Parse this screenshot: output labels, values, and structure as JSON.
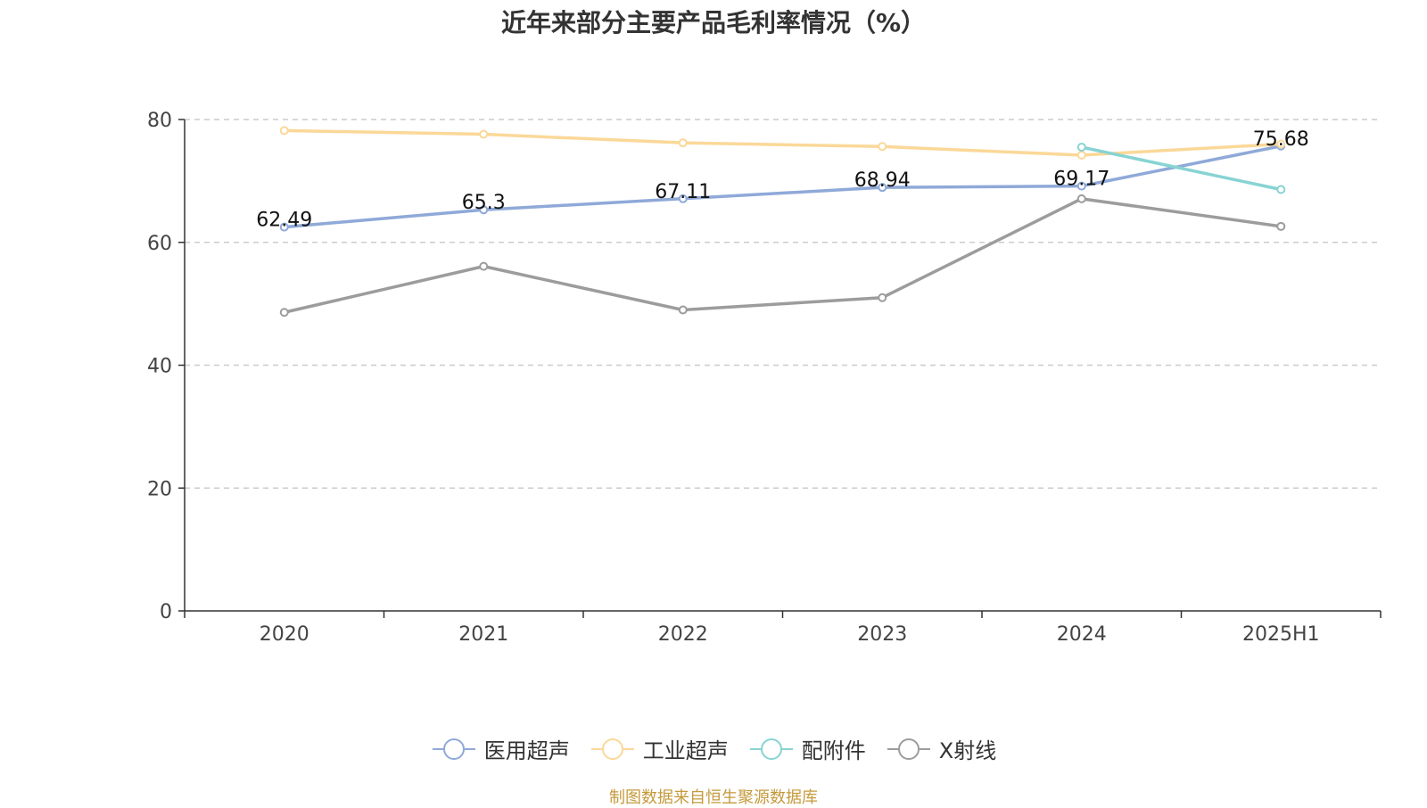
{
  "chart_data": {
    "type": "line",
    "title": "近年来部分主要产品毛利率情况（%）",
    "categories": [
      "2020",
      "2021",
      "2022",
      "2023",
      "2024",
      "2025H1"
    ],
    "ylim": [
      0,
      80
    ],
    "yticks": [
      0,
      20,
      40,
      60,
      80
    ],
    "grid": true,
    "legend_position": "bottom",
    "series": [
      {
        "name": "医用超声",
        "color": "#8fa9d8",
        "values": [
          62.49,
          65.3,
          67.11,
          68.94,
          69.17,
          75.68
        ],
        "show_labels": true
      },
      {
        "name": "工业超声",
        "color": "#fbd898",
        "values": [
          78.2,
          77.6,
          76.2,
          75.6,
          74.2,
          76.0
        ],
        "show_labels": false
      },
      {
        "name": "配附件",
        "color": "#88d3d3",
        "values": [
          null,
          null,
          null,
          null,
          75.5,
          68.6
        ],
        "show_labels": false
      },
      {
        "name": "X射线",
        "color": "#9c9c9c",
        "values": [
          48.6,
          56.1,
          49.0,
          51.0,
          67.1,
          62.6
        ],
        "show_labels": false
      }
    ]
  },
  "source": "制图数据来自恒生聚源数据库"
}
